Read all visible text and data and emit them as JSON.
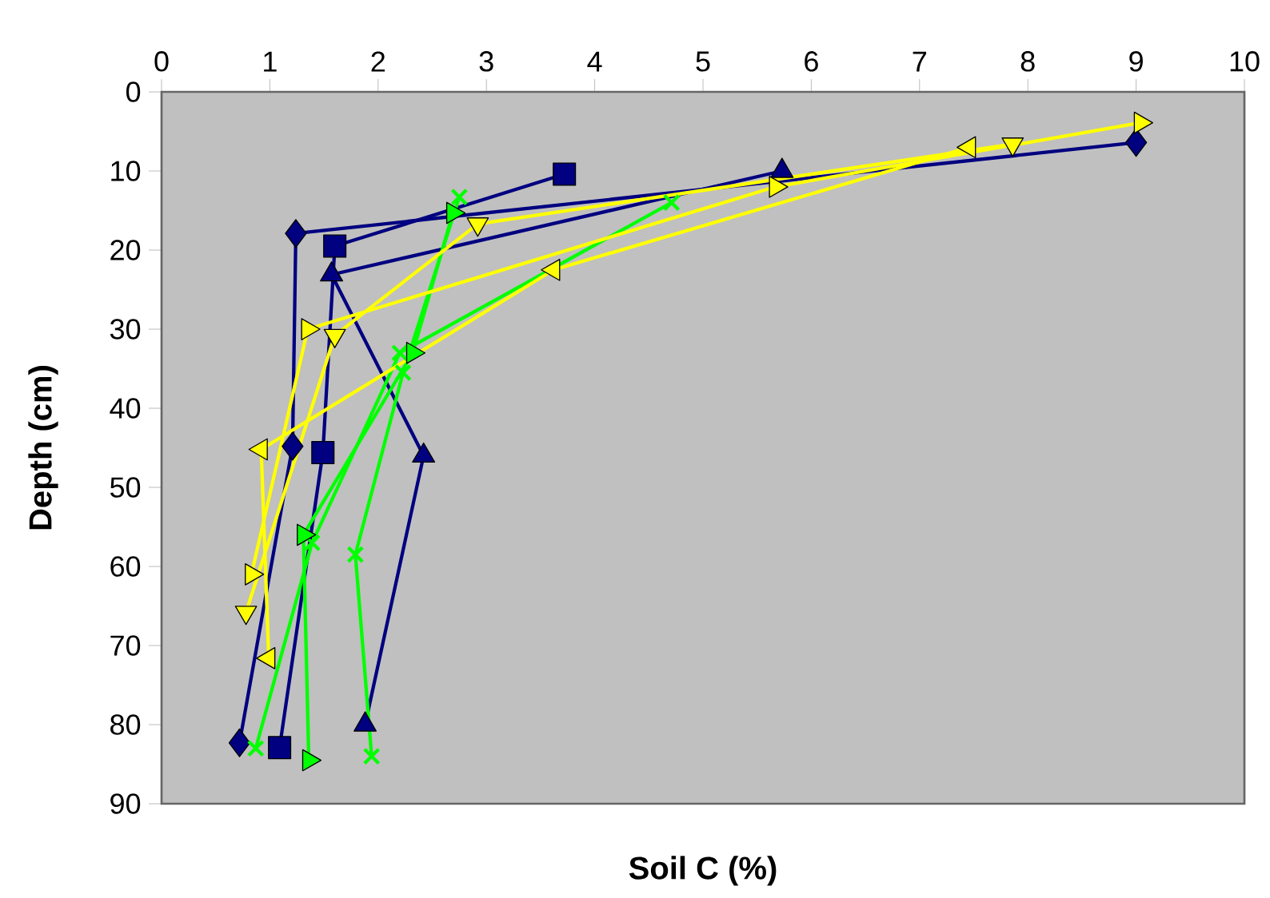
{
  "chart_data": {
    "type": "line",
    "xlabel": "Soil C (%)",
    "ylabel": "Depth (cm)",
    "xlim": [
      0,
      10
    ],
    "xticks": [
      0,
      1,
      2,
      3,
      4,
      5,
      6,
      7,
      8,
      9,
      10
    ],
    "ylim": [
      90,
      0
    ],
    "yticks": [
      0,
      10,
      20,
      30,
      40,
      50,
      60,
      70,
      80,
      90
    ],
    "series": [
      {
        "color": "#000080",
        "marker": "diamond",
        "x": [
          9.0,
          1.24,
          1.21,
          0.72
        ],
        "values": [
          6.4,
          17.9,
          44.8,
          82.3
        ]
      },
      {
        "color": "#000080",
        "marker": "square",
        "x": [
          3.72,
          1.6,
          1.49,
          1.09
        ],
        "values": [
          10.4,
          19.5,
          45.6,
          82.9
        ]
      },
      {
        "color": "#000080",
        "marker": "triangle",
        "x": [
          5.73,
          1.57,
          2.42,
          1.88
        ],
        "values": [
          10,
          23.1,
          46,
          80
        ]
      },
      {
        "color": "#00ff00",
        "marker": "cross",
        "x": [
          2.75,
          2.23,
          1.79,
          1.94
        ],
        "values": [
          13.3,
          35.5,
          58.5,
          84
        ]
      },
      {
        "color": "#00ff00",
        "marker": "cross",
        "x": [
          4.71,
          2.2,
          1.39,
          0.87
        ],
        "values": [
          14,
          33,
          57,
          83
        ]
      },
      {
        "color": "#00ff00",
        "marker": "triangle-right",
        "x": [
          2.69,
          2.32,
          1.31,
          1.36
        ],
        "values": [
          15.3,
          33,
          56,
          84.5
        ]
      },
      {
        "color": "#ffff00",
        "marker": "triangle-right",
        "x": [
          9.04,
          5.67,
          1.35,
          0.83
        ],
        "values": [
          3.9,
          12,
          30,
          61
        ]
      },
      {
        "color": "#ffff00",
        "marker": "triangle-down",
        "x": [
          7.86,
          2.92,
          1.6,
          0.78
        ],
        "values": [
          6.6,
          16.7,
          30.8,
          65.8
        ]
      },
      {
        "color": "#ffff00",
        "marker": "triangle-left",
        "x": [
          7.46,
          3.62,
          0.92,
          0.99
        ],
        "values": [
          7,
          22.5,
          45.2,
          71.6
        ]
      }
    ]
  }
}
